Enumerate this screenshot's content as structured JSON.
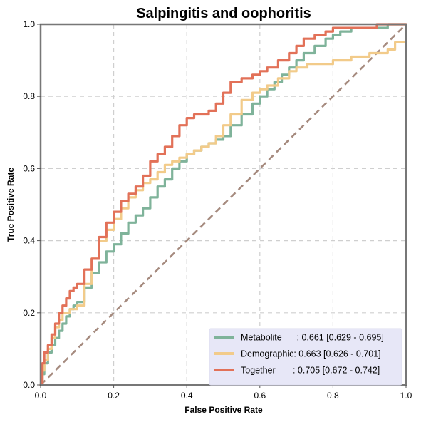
{
  "chart_data": {
    "type": "line",
    "title": "Salpingitis and oophoritis",
    "xlabel": "False Positive Rate",
    "ylabel": "True Positive Rate",
    "xlim": [
      0,
      1
    ],
    "ylim": [
      0,
      1
    ],
    "xticks": [
      "0.0",
      "0.2",
      "0.4",
      "0.6",
      "0.8",
      "1.0"
    ],
    "yticks": [
      "0.0",
      "0.2",
      "0.4",
      "0.6",
      "0.8",
      "1.0"
    ],
    "grid": true,
    "legend_position": "bottom-right",
    "chance_line": {
      "x": [
        0,
        1
      ],
      "y": [
        0,
        1
      ],
      "color": "#a58a7e"
    },
    "series": [
      {
        "name": "Metabolite",
        "legend_label": "Metabolite      : 0.661 [0.629 - 0.695]",
        "color": "#7fb39a",
        "x": [
          0,
          0.005,
          0.01,
          0.02,
          0.03,
          0.04,
          0.05,
          0.06,
          0.07,
          0.08,
          0.09,
          0.1,
          0.12,
          0.14,
          0.16,
          0.18,
          0.2,
          0.22,
          0.24,
          0.26,
          0.28,
          0.3,
          0.32,
          0.34,
          0.36,
          0.38,
          0.4,
          0.42,
          0.44,
          0.46,
          0.48,
          0.5,
          0.52,
          0.55,
          0.58,
          0.6,
          0.62,
          0.64,
          0.66,
          0.68,
          0.7,
          0.72,
          0.75,
          0.78,
          0.8,
          0.82,
          0.85,
          0.88,
          0.9,
          0.93,
          0.95,
          0.97,
          1.0
        ],
        "y": [
          0,
          0.03,
          0.06,
          0.09,
          0.11,
          0.13,
          0.15,
          0.17,
          0.19,
          0.21,
          0.22,
          0.23,
          0.27,
          0.31,
          0.34,
          0.37,
          0.39,
          0.42,
          0.45,
          0.47,
          0.49,
          0.52,
          0.55,
          0.57,
          0.6,
          0.62,
          0.64,
          0.65,
          0.66,
          0.67,
          0.68,
          0.69,
          0.72,
          0.75,
          0.78,
          0.8,
          0.82,
          0.84,
          0.86,
          0.88,
          0.9,
          0.92,
          0.94,
          0.96,
          0.97,
          0.98,
          0.99,
          0.99,
          0.99,
          0.99,
          1.0,
          1.0,
          1.0
        ]
      },
      {
        "name": "Demographic",
        "legend_label": "Demographic: 0.663 [0.626 - 0.701]",
        "color": "#f2cb8a",
        "x": [
          0,
          0.005,
          0.01,
          0.02,
          0.03,
          0.04,
          0.05,
          0.06,
          0.07,
          0.08,
          0.09,
          0.1,
          0.12,
          0.14,
          0.16,
          0.18,
          0.2,
          0.22,
          0.24,
          0.26,
          0.28,
          0.3,
          0.32,
          0.34,
          0.36,
          0.38,
          0.4,
          0.42,
          0.44,
          0.46,
          0.48,
          0.5,
          0.52,
          0.55,
          0.58,
          0.6,
          0.62,
          0.65,
          0.68,
          0.7,
          0.73,
          0.76,
          0.8,
          0.82,
          0.85,
          0.88,
          0.9,
          0.92,
          0.95,
          0.97,
          1.0
        ],
        "y": [
          0,
          0.04,
          0.07,
          0.1,
          0.13,
          0.16,
          0.18,
          0.2,
          0.2,
          0.21,
          0.21,
          0.22,
          0.28,
          0.35,
          0.4,
          0.43,
          0.46,
          0.49,
          0.52,
          0.54,
          0.56,
          0.57,
          0.59,
          0.61,
          0.62,
          0.63,
          0.64,
          0.65,
          0.66,
          0.67,
          0.69,
          0.72,
          0.75,
          0.79,
          0.81,
          0.82,
          0.83,
          0.85,
          0.87,
          0.88,
          0.89,
          0.89,
          0.9,
          0.9,
          0.91,
          0.91,
          0.92,
          0.92,
          0.93,
          0.95,
          1.0
        ]
      },
      {
        "name": "Together",
        "legend_label": "Together       : 0.705 [0.672 - 0.742]",
        "color": "#e27158",
        "x": [
          0,
          0.005,
          0.01,
          0.02,
          0.03,
          0.04,
          0.05,
          0.06,
          0.07,
          0.08,
          0.09,
          0.1,
          0.12,
          0.14,
          0.16,
          0.18,
          0.2,
          0.22,
          0.24,
          0.26,
          0.28,
          0.3,
          0.32,
          0.34,
          0.36,
          0.38,
          0.4,
          0.42,
          0.44,
          0.46,
          0.48,
          0.5,
          0.52,
          0.55,
          0.58,
          0.6,
          0.62,
          0.65,
          0.68,
          0.7,
          0.72,
          0.75,
          0.78,
          0.8,
          0.82,
          0.85,
          0.88,
          0.9,
          0.92,
          0.95,
          0.97,
          1.0
        ],
        "y": [
          0,
          0.06,
          0.09,
          0.11,
          0.14,
          0.17,
          0.2,
          0.22,
          0.24,
          0.26,
          0.27,
          0.28,
          0.32,
          0.35,
          0.41,
          0.45,
          0.48,
          0.51,
          0.53,
          0.55,
          0.58,
          0.62,
          0.64,
          0.66,
          0.69,
          0.72,
          0.74,
          0.75,
          0.75,
          0.76,
          0.78,
          0.81,
          0.84,
          0.85,
          0.86,
          0.87,
          0.88,
          0.9,
          0.92,
          0.94,
          0.96,
          0.97,
          0.98,
          0.99,
          0.99,
          0.99,
          0.99,
          0.99,
          1.0,
          1.0,
          1.0,
          1.0
        ]
      }
    ]
  }
}
